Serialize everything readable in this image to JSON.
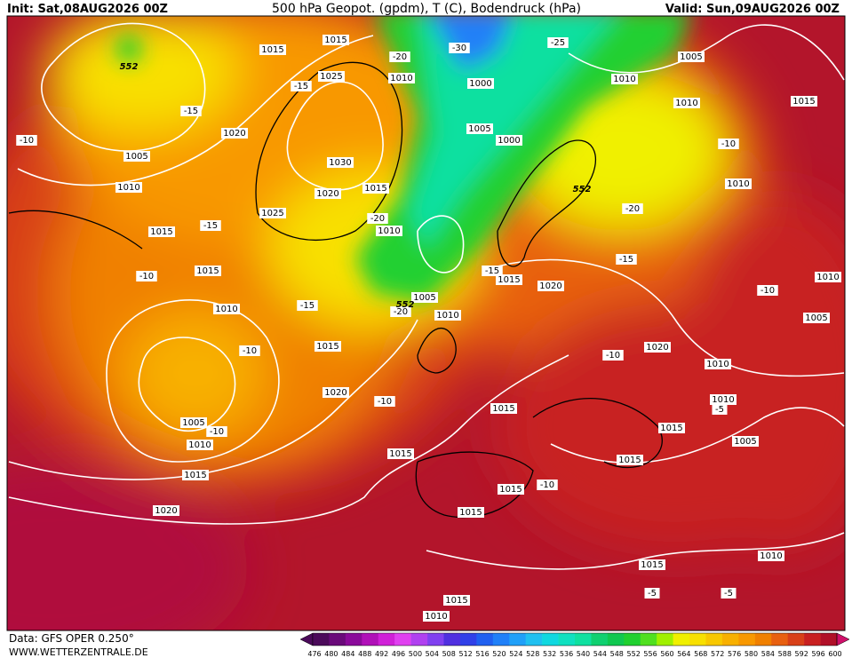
{
  "header": {
    "init": "Init: Sat,08AUG2026 00Z",
    "title": "500 hPa Geopot. (gpdm), T (C), Bodendruck (hPa)",
    "valid": "Valid: Sun,09AUG2026 00Z"
  },
  "footer": {
    "data": "Data: GFS OPER 0.250°",
    "site": "WWW.WETTERZENTRALE.DE"
  },
  "colorbar": {
    "labels": [
      476,
      480,
      484,
      488,
      492,
      496,
      500,
      504,
      508,
      512,
      516,
      520,
      524,
      528,
      532,
      536,
      540,
      544,
      548,
      552,
      556,
      560,
      564,
      568,
      572,
      576,
      580,
      584,
      588,
      592,
      596,
      600
    ],
    "colors": [
      "#4b0a5a",
      "#6a0a7a",
      "#8a0a9a",
      "#b010b8",
      "#d020d8",
      "#e040f0",
      "#b040f0",
      "#8040f0",
      "#5030e0",
      "#3040e8",
      "#2060f0",
      "#2080f8",
      "#20a0f8",
      "#20c0f0",
      "#10d8e0",
      "#10e0c0",
      "#10e0a0",
      "#10d070",
      "#10c850",
      "#20d030",
      "#50e020",
      "#a0f000",
      "#f0f000",
      "#f8e000",
      "#f8c800",
      "#f8b000",
      "#f89800",
      "#f08000",
      "#e86010",
      "#d84018",
      "#c82020",
      "#b01028"
    ]
  },
  "map": {
    "pressure_labels": [
      "1015",
      "1015",
      "1025",
      "1010",
      "1005",
      "1010",
      "1000",
      "1010",
      "1015",
      "1020",
      "1005",
      "1000",
      "1005",
      "1030",
      "1010",
      "1020",
      "1015",
      "1010",
      "1025",
      "1015",
      "1010",
      "1015",
      "1015",
      "1020",
      "1005",
      "1010",
      "1010",
      "1015",
      "1020",
      "1010",
      "1020",
      "1015",
      "1010",
      "1005",
      "1010",
      "1015",
      "1005",
      "1015",
      "1015",
      "1015",
      "1015",
      "1020",
      "1015",
      "1015",
      "1010",
      "1015",
      "1010",
      "1010",
      "1005"
    ],
    "temperature_labels": [
      "-10",
      "-15",
      "-15",
      "-20",
      "-30",
      "-25",
      "-10",
      "-20",
      "-15",
      "-20",
      "-15",
      "-10",
      "-15",
      "-20",
      "-15",
      "-10",
      "-10",
      "-10",
      "-10",
      "-10",
      "-5",
      "-10",
      "-5",
      "-5"
    ],
    "geopotential_labels": [
      "552",
      "552",
      "552"
    ]
  }
}
